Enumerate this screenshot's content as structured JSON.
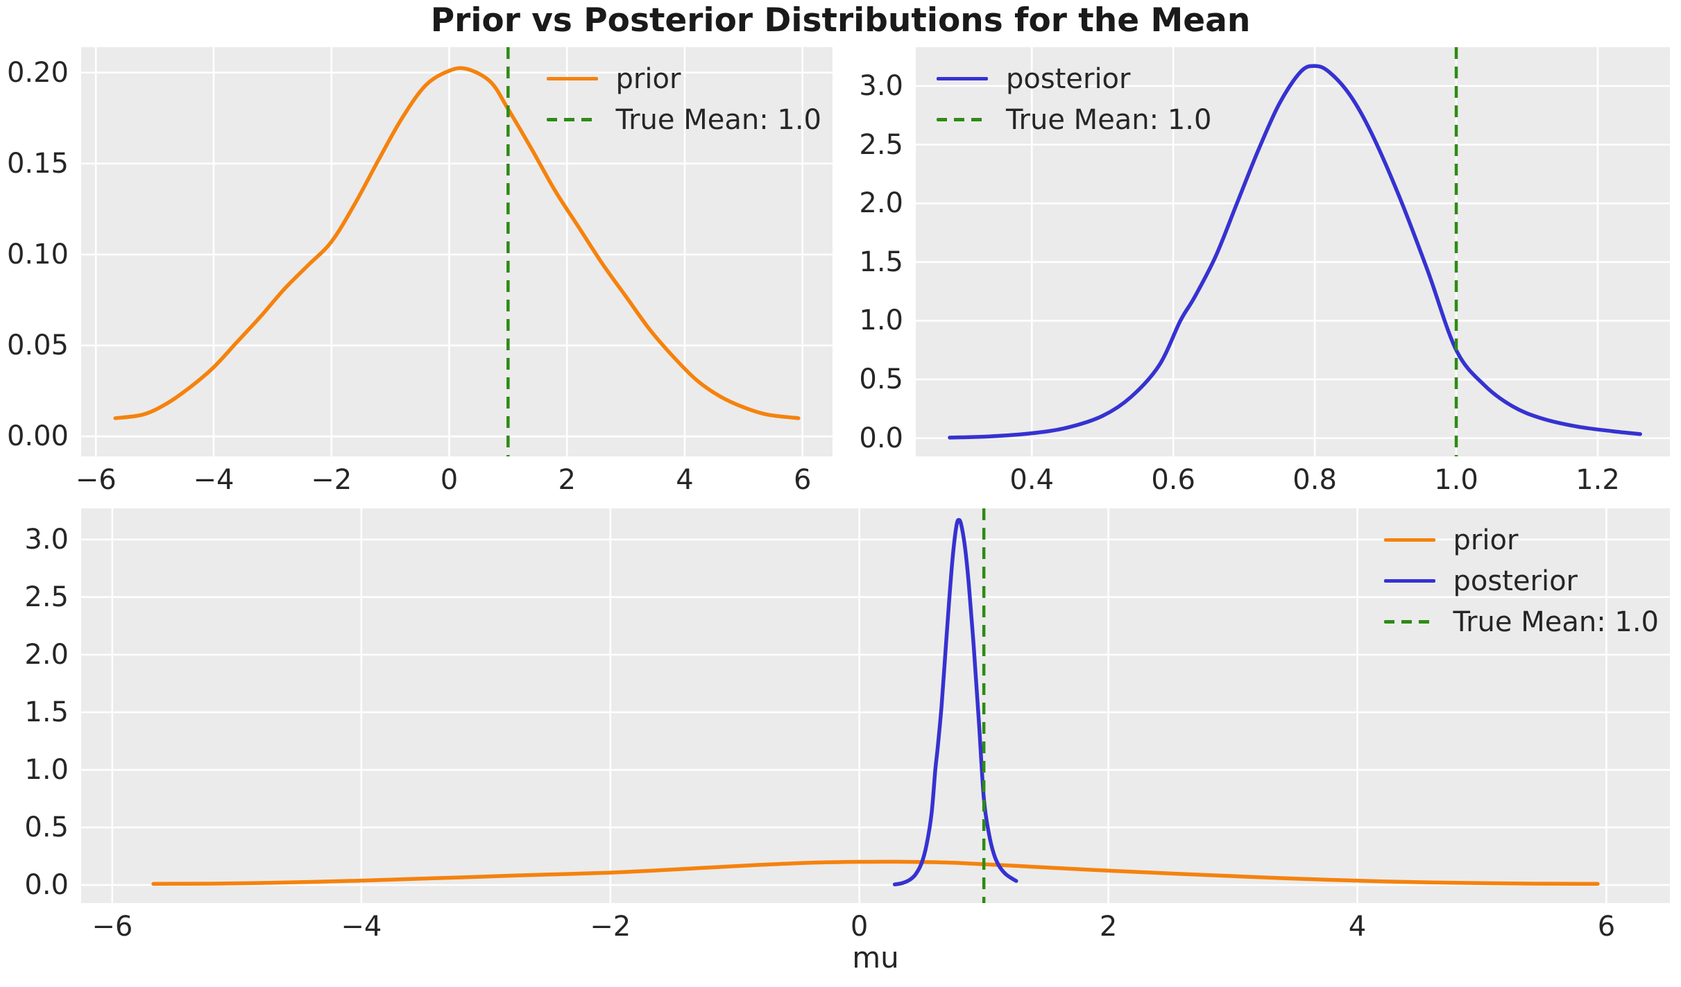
{
  "figure": {
    "title": "Prior vs Posterior Distributions for the Mean",
    "background": "#ffffff",
    "axes_background": "#ebebeb",
    "grid_color": "#ffffff",
    "text_color": "#262626",
    "colors": {
      "prior": "#f5820d",
      "posterior": "#3632d1",
      "true_mean": "#2e8b14"
    }
  },
  "chart_data": [
    {
      "id": "prior-subplot",
      "type": "line",
      "title": "",
      "xlabel": "",
      "ylabel": "",
      "grid": true,
      "xlim": [
        -6.25,
        6.51
      ],
      "ylim": [
        -0.011,
        0.214
      ],
      "xticks": {
        "values": [
          -6,
          -4,
          -2,
          0,
          2,
          4,
          6
        ],
        "labels": [
          "−6",
          "−4",
          "−2",
          "0",
          "2",
          "4",
          "6"
        ]
      },
      "yticks": {
        "values": [
          0.0,
          0.05,
          0.1,
          0.15,
          0.2
        ],
        "labels": [
          "0.00",
          "0.05",
          "0.10",
          "0.15",
          "0.20"
        ]
      },
      "series": [
        {
          "name": "prior",
          "color": "#f5820d",
          "x": [
            -5.67,
            -5.2,
            -4.8,
            -4.4,
            -4.0,
            -3.6,
            -3.2,
            -2.8,
            -2.4,
            -2.0,
            -1.6,
            -1.2,
            -0.8,
            -0.4,
            0.0,
            0.3,
            0.7,
            1.0,
            1.4,
            1.8,
            2.2,
            2.6,
            3.0,
            3.4,
            3.8,
            4.2,
            4.6,
            5.0,
            5.4,
            5.93
          ],
          "y": [
            0.01,
            0.012,
            0.018,
            0.027,
            0.038,
            0.052,
            0.066,
            0.081,
            0.094,
            0.107,
            0.128,
            0.152,
            0.175,
            0.193,
            0.201,
            0.202,
            0.195,
            0.18,
            0.158,
            0.135,
            0.115,
            0.095,
            0.077,
            0.059,
            0.044,
            0.031,
            0.022,
            0.016,
            0.012,
            0.01
          ]
        }
      ],
      "vline": {
        "x": 1.0,
        "label": "True Mean: 1.0",
        "color": "#2e8b14",
        "style": "dashed"
      },
      "legend": {
        "position": "upper-right",
        "entries": [
          {
            "label": "prior",
            "color": "#f5820d",
            "dash": false
          },
          {
            "label": "True Mean: 1.0",
            "color": "#2e8b14",
            "dash": true
          }
        ]
      }
    },
    {
      "id": "posterior-subplot",
      "type": "line",
      "title": "",
      "xlabel": "",
      "ylabel": "",
      "grid": true,
      "xlim": [
        0.236,
        1.302
      ],
      "ylim": [
        -0.155,
        3.33
      ],
      "xticks": {
        "values": [
          0.4,
          0.6,
          0.8,
          1.0,
          1.2
        ],
        "labels": [
          "0.4",
          "0.6",
          "0.8",
          "1.0",
          "1.2"
        ]
      },
      "yticks": {
        "values": [
          0.0,
          0.5,
          1.0,
          1.5,
          2.0,
          2.5,
          3.0
        ],
        "labels": [
          "0.0",
          "0.5",
          "1.0",
          "1.5",
          "2.0",
          "2.5",
          "3.0"
        ]
      },
      "series": [
        {
          "name": "posterior",
          "color": "#3632d1",
          "x": [
            0.284,
            0.34,
            0.4,
            0.45,
            0.5,
            0.54,
            0.58,
            0.61,
            0.63,
            0.66,
            0.69,
            0.72,
            0.75,
            0.78,
            0.8,
            0.82,
            0.85,
            0.88,
            0.92,
            0.96,
            1.0,
            1.04,
            1.08,
            1.12,
            1.17,
            1.22,
            1.26
          ],
          "y": [
            0.005,
            0.015,
            0.042,
            0.09,
            0.19,
            0.35,
            0.62,
            1.0,
            1.2,
            1.55,
            2.0,
            2.45,
            2.85,
            3.12,
            3.17,
            3.12,
            2.92,
            2.6,
            2.05,
            1.42,
            0.75,
            0.45,
            0.27,
            0.17,
            0.1,
            0.06,
            0.035
          ]
        }
      ],
      "vline": {
        "x": 1.0,
        "label": "True Mean: 1.0",
        "color": "#2e8b14",
        "style": "dashed"
      },
      "legend": {
        "position": "upper-left",
        "entries": [
          {
            "label": "posterior",
            "color": "#3632d1",
            "dash": false
          },
          {
            "label": "True Mean: 1.0",
            "color": "#2e8b14",
            "dash": true
          }
        ]
      }
    },
    {
      "id": "combined-subplot",
      "type": "line",
      "title": "",
      "xlabel": "mu",
      "ylabel": "",
      "grid": true,
      "xlim": [
        -6.25,
        6.51
      ],
      "ylim": [
        -0.157,
        3.27
      ],
      "xticks": {
        "values": [
          -6,
          -4,
          -2,
          0,
          2,
          4,
          6
        ],
        "labels": [
          "−6",
          "−4",
          "−2",
          "0",
          "2",
          "4",
          "6"
        ]
      },
      "yticks": {
        "values": [
          0.0,
          0.5,
          1.0,
          1.5,
          2.0,
          2.5,
          3.0
        ],
        "labels": [
          "0.0",
          "0.5",
          "1.0",
          "1.5",
          "2.0",
          "2.5",
          "3.0"
        ]
      },
      "series": [
        {
          "name": "prior",
          "color": "#f5820d",
          "x": [
            -5.67,
            -5.2,
            -4.8,
            -4.4,
            -4.0,
            -3.6,
            -3.2,
            -2.8,
            -2.4,
            -2.0,
            -1.6,
            -1.2,
            -0.8,
            -0.4,
            0.0,
            0.3,
            0.7,
            1.0,
            1.4,
            1.8,
            2.2,
            2.6,
            3.0,
            3.4,
            3.8,
            4.2,
            4.6,
            5.0,
            5.4,
            5.93
          ],
          "y": [
            0.01,
            0.012,
            0.018,
            0.027,
            0.038,
            0.052,
            0.066,
            0.081,
            0.094,
            0.107,
            0.128,
            0.152,
            0.175,
            0.193,
            0.201,
            0.202,
            0.195,
            0.18,
            0.158,
            0.135,
            0.115,
            0.095,
            0.077,
            0.059,
            0.044,
            0.031,
            0.022,
            0.016,
            0.012,
            0.01
          ]
        },
        {
          "name": "posterior",
          "color": "#3632d1",
          "x": [
            0.284,
            0.34,
            0.4,
            0.45,
            0.5,
            0.54,
            0.58,
            0.61,
            0.63,
            0.66,
            0.69,
            0.72,
            0.75,
            0.78,
            0.8,
            0.82,
            0.85,
            0.88,
            0.92,
            0.96,
            1.0,
            1.04,
            1.08,
            1.12,
            1.17,
            1.22,
            1.26
          ],
          "y": [
            0.005,
            0.015,
            0.042,
            0.09,
            0.19,
            0.35,
            0.62,
            1.0,
            1.2,
            1.55,
            2.0,
            2.45,
            2.85,
            3.12,
            3.17,
            3.12,
            2.92,
            2.6,
            2.05,
            1.42,
            0.75,
            0.45,
            0.27,
            0.17,
            0.1,
            0.06,
            0.035
          ]
        }
      ],
      "vline": {
        "x": 1.0,
        "label": "True Mean: 1.0",
        "color": "#2e8b14",
        "style": "dashed"
      },
      "legend": {
        "position": "upper-right",
        "entries": [
          {
            "label": "prior",
            "color": "#f5820d",
            "dash": false
          },
          {
            "label": "posterior",
            "color": "#3632d1",
            "dash": false
          },
          {
            "label": "True Mean: 1.0",
            "color": "#2e8b14",
            "dash": true
          }
        ]
      }
    }
  ]
}
